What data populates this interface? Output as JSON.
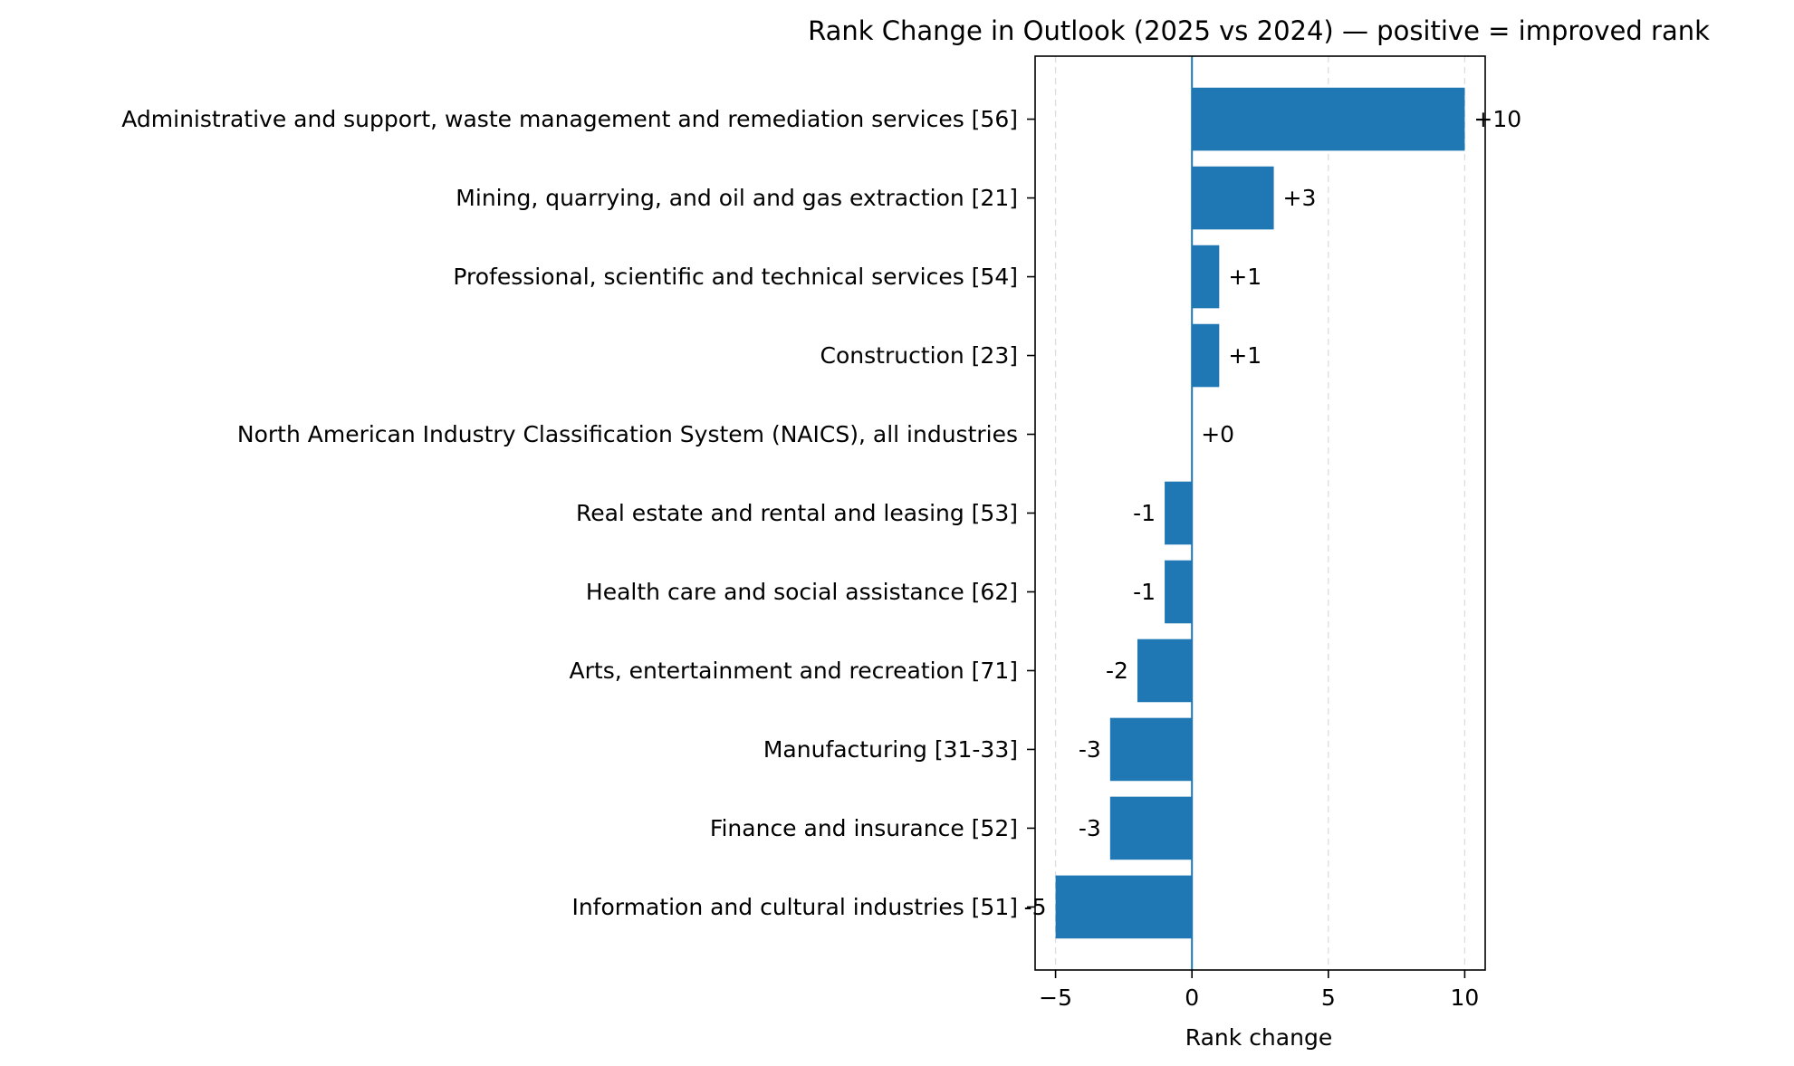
{
  "chart_data": {
    "type": "bar",
    "orientation": "horizontal",
    "title": "Rank Change in Outlook (2025 vs 2024) — positive = improved rank",
    "xlabel": "Rank change",
    "ylabel": "",
    "categories": [
      "Administrative and support, waste management and remediation services [56]",
      "Mining, quarrying, and oil and gas extraction [21]",
      "Professional, scientific and technical services [54]",
      "Construction [23]",
      "North American Industry Classification System (NAICS), all industries",
      "Real estate and rental and leasing [53]",
      "Health care and social assistance [62]",
      "Arts, entertainment and recreation [71]",
      "Manufacturing [31-33]",
      "Finance and insurance [52]",
      "Information and cultural industries [51]"
    ],
    "values": [
      10,
      3,
      1,
      1,
      0,
      -1,
      -1,
      -2,
      -3,
      -3,
      -5
    ],
    "data_labels": [
      "+10",
      "+3",
      "+1",
      "+1",
      "+0",
      "-1",
      "-1",
      "-2",
      "-3",
      "-3",
      "-5"
    ],
    "xlim": [
      -5.75,
      10.75
    ],
    "xticks": [
      -5,
      0,
      5,
      10
    ],
    "xtick_labels": [
      "−5",
      "0",
      "5",
      "10"
    ],
    "grid": "x-axis, dashed",
    "zero_line": true,
    "legend": "none",
    "bar_color": "#1f77b4",
    "zero_line_color": "#1f77b4",
    "grid_color": "#dddddd"
  }
}
